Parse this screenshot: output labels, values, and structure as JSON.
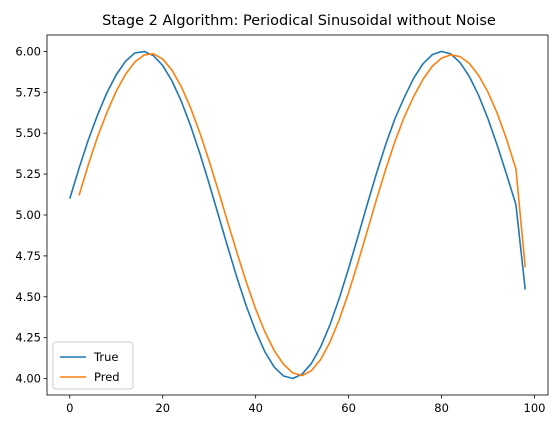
{
  "chart_data": {
    "type": "line",
    "title": "Stage 2 Algorithm: Periodical Sinusoidal without Noise",
    "xlabel": "",
    "ylabel": "",
    "xlim": [
      -4.9,
      102.9
    ],
    "ylim": [
      3.9,
      6.1
    ],
    "xticks": [
      0,
      20,
      40,
      60,
      80,
      100
    ],
    "xtick_labels": [
      "0",
      "20",
      "40",
      "60",
      "80",
      "100"
    ],
    "yticks": [
      4.0,
      4.25,
      4.5,
      4.75,
      5.0,
      5.25,
      5.5,
      5.75,
      6.0
    ],
    "ytick_labels": [
      "4.00",
      "4.25",
      "4.50",
      "4.75",
      "5.00",
      "5.25",
      "5.50",
      "5.75",
      "6.00"
    ],
    "grid": false,
    "legend": "lower-left",
    "series": [
      {
        "name": "True",
        "color": "#1f77b4",
        "x": [
          0,
          2,
          4,
          6,
          8,
          10,
          12,
          14,
          16,
          18,
          20,
          22,
          24,
          26,
          28,
          30,
          32,
          34,
          36,
          38,
          40,
          42,
          44,
          46,
          48,
          50,
          52,
          54,
          56,
          58,
          60,
          62,
          64,
          66,
          68,
          70,
          72,
          74,
          76,
          78,
          80,
          82,
          84,
          86,
          88,
          90,
          92,
          94,
          96,
          98
        ],
        "y": [
          5.1,
          5.286,
          5.46,
          5.613,
          5.748,
          5.857,
          5.94,
          5.99,
          5.999,
          5.974,
          5.913,
          5.819,
          5.695,
          5.545,
          5.375,
          5.19,
          4.997,
          4.803,
          4.615,
          4.442,
          4.291,
          4.163,
          4.07,
          4.016,
          4.001,
          4.028,
          4.093,
          4.195,
          4.33,
          4.492,
          4.674,
          4.867,
          5.064,
          5.255,
          5.433,
          5.591,
          5.72,
          5.836,
          5.924,
          5.98,
          6.0,
          5.984,
          5.931,
          5.845,
          5.729,
          5.587,
          5.424,
          5.247,
          5.063,
          4.545
        ]
      },
      {
        "name": "Pred",
        "color": "#ff7f0e",
        "x": [
          2,
          4,
          6,
          8,
          10,
          12,
          14,
          16,
          18,
          20,
          22,
          24,
          26,
          28,
          30,
          32,
          34,
          36,
          38,
          40,
          42,
          44,
          46,
          48,
          50,
          52,
          54,
          56,
          58,
          60,
          62,
          64,
          66,
          68,
          70,
          72,
          74,
          76,
          78,
          80,
          82,
          84,
          86,
          88,
          90,
          92,
          94,
          96,
          98
        ],
        "y": [
          5.12,
          5.308,
          5.48,
          5.627,
          5.757,
          5.86,
          5.935,
          5.978,
          5.985,
          5.953,
          5.885,
          5.784,
          5.655,
          5.501,
          5.329,
          5.145,
          4.955,
          4.767,
          4.588,
          4.425,
          4.285,
          4.171,
          4.088,
          4.035,
          4.019,
          4.049,
          4.118,
          4.224,
          4.362,
          4.526,
          4.709,
          4.901,
          5.095,
          5.281,
          5.452,
          5.601,
          5.724,
          5.829,
          5.909,
          5.959,
          5.979,
          5.968,
          5.926,
          5.852,
          5.75,
          5.62,
          5.462,
          5.281,
          4.68
        ]
      }
    ]
  }
}
